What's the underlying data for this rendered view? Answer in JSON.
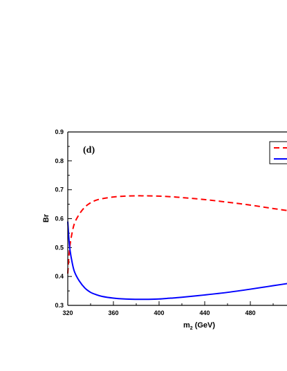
{
  "chart_data": {
    "type": "line",
    "panel_label": "(d)",
    "xlabel_main": "m",
    "xlabel_sub": "2",
    "xlabel_unit": " (GeV)",
    "ylabel": "Br",
    "xlim": [
      320,
      520
    ],
    "ylim": [
      0.3,
      0.9
    ],
    "x_ticks": [
      320,
      360,
      400,
      440,
      480
    ],
    "y_ticks": [
      0.3,
      0.4,
      0.5,
      0.6,
      0.7,
      0.8,
      0.9
    ],
    "y_tick_labels": [
      "0.3",
      "0.4",
      "0.5",
      "0.6",
      "0.7",
      "0.8",
      "0.9"
    ],
    "grid": false,
    "legend": "top-right",
    "series": [
      {
        "color": "#ff0000",
        "style": "dashed",
        "x": [
          320,
          321,
          322,
          324,
          326,
          330,
          335,
          340,
          345,
          350,
          360,
          370,
          380,
          385,
          390,
          400,
          410,
          420,
          440,
          460,
          480,
          500,
          520
        ],
        "y": [
          0.41,
          0.47,
          0.51,
          0.555,
          0.585,
          0.615,
          0.64,
          0.655,
          0.664,
          0.669,
          0.675,
          0.678,
          0.679,
          0.679,
          0.679,
          0.678,
          0.676,
          0.673,
          0.666,
          0.657,
          0.647,
          0.635,
          0.624
        ]
      },
      {
        "color": "#0000ff",
        "style": "solid",
        "x": [
          320,
          321,
          322,
          324,
          326,
          330,
          335,
          340,
          345,
          350,
          360,
          370,
          380,
          385,
          390,
          400,
          410,
          420,
          440,
          460,
          480,
          500,
          520
        ],
        "y": [
          0.59,
          0.53,
          0.49,
          0.445,
          0.415,
          0.385,
          0.36,
          0.345,
          0.337,
          0.331,
          0.325,
          0.322,
          0.321,
          0.321,
          0.321,
          0.322,
          0.325,
          0.328,
          0.336,
          0.345,
          0.356,
          0.368,
          0.38
        ]
      }
    ]
  }
}
